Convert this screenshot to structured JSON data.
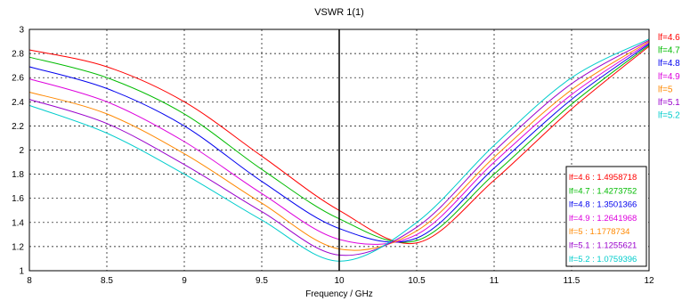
{
  "chart_data": {
    "type": "line",
    "title": "VSWR 1(1)",
    "xlabel": "Frequency / GHz",
    "ylabel": "",
    "xlim": [
      8,
      12
    ],
    "ylim": [
      1,
      3
    ],
    "x_ticks": [
      "8",
      "8.5",
      "9",
      "9.5",
      "10",
      "10.5",
      "11",
      "11.5",
      "12"
    ],
    "y_ticks": [
      "1",
      "1.2",
      "1.4",
      "1.6",
      "1.8",
      "2",
      "2.2",
      "2.4",
      "2.6",
      "2.8",
      "3"
    ],
    "grid": true,
    "legend_position": "right",
    "marker_x": 10,
    "x": [
      8.0,
      8.5,
      9.0,
      9.5,
      10.0,
      10.5,
      11.0,
      11.5,
      12.0
    ],
    "series": [
      {
        "name": "lf=4.6",
        "color": "#ff0000",
        "values": [
          2.83,
          2.69,
          2.4,
          1.95,
          1.5,
          1.23,
          1.75,
          2.34,
          2.86
        ]
      },
      {
        "name": "lf=4.7",
        "color": "#00bb00",
        "values": [
          2.77,
          2.6,
          2.3,
          1.84,
          1.43,
          1.25,
          1.8,
          2.38,
          2.87
        ]
      },
      {
        "name": "lf=4.8",
        "color": "#0000ee",
        "values": [
          2.69,
          2.51,
          2.2,
          1.74,
          1.35,
          1.27,
          1.85,
          2.42,
          2.88
        ]
      },
      {
        "name": "lf=4.9",
        "color": "#dd00dd",
        "values": [
          2.59,
          2.4,
          2.07,
          1.64,
          1.26,
          1.3,
          1.9,
          2.46,
          2.89
        ]
      },
      {
        "name": "lf=5",
        "color": "#ff8800",
        "values": [
          2.48,
          2.3,
          1.97,
          1.56,
          1.18,
          1.33,
          1.94,
          2.5,
          2.9
        ]
      },
      {
        "name": "lf=5.1",
        "color": "#9900cc",
        "values": [
          2.42,
          2.22,
          1.88,
          1.49,
          1.13,
          1.36,
          1.99,
          2.55,
          2.91
        ]
      },
      {
        "name": "lf=5.2",
        "color": "#00cccc",
        "values": [
          2.37,
          2.14,
          1.8,
          1.42,
          1.08,
          1.4,
          2.04,
          2.6,
          2.92
        ]
      }
    ],
    "marker_readout": [
      "lf=4.6 : 1.4958718",
      "lf=4.7 : 1.4273752",
      "lf=4.8 : 1.3501366",
      "lf=4.9 : 1.2641968",
      "lf=5 : 1.1778734",
      "lf=5.1 : 1.1255621",
      "lf=5.2 : 1.0759396"
    ]
  }
}
